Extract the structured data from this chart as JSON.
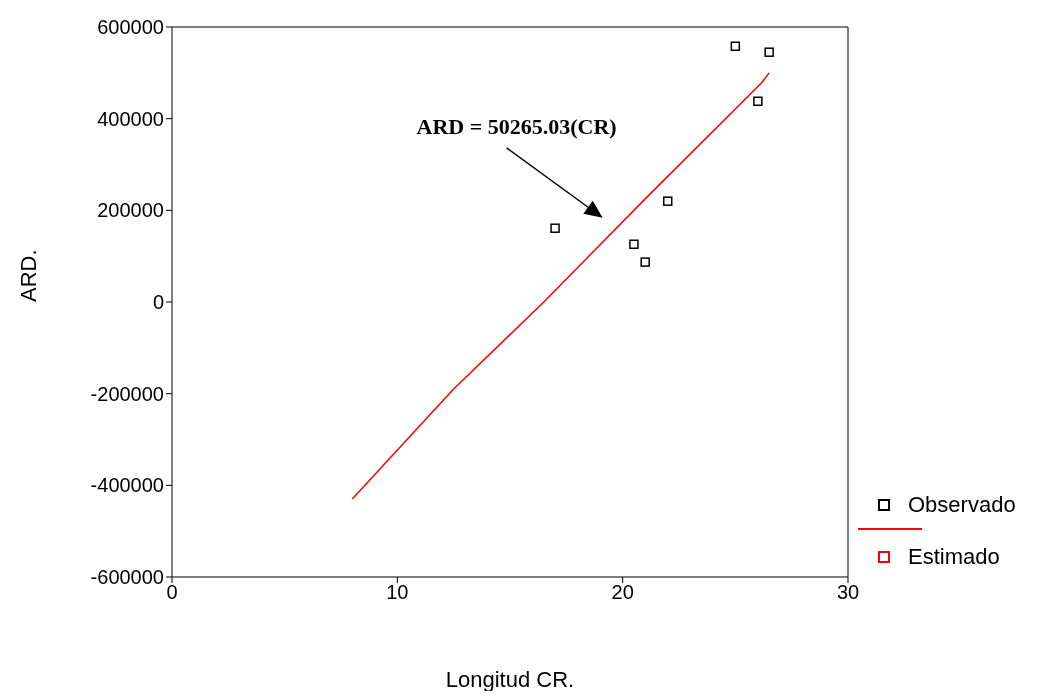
{
  "chart_data": {
    "type": "scatter",
    "xlabel": "Longitud CR.",
    "ylabel": "ARD.",
    "xlim": [
      0,
      30
    ],
    "xticks": [
      0,
      10,
      20,
      30
    ],
    "ylim": [
      -600000,
      600000
    ],
    "yticks": [
      -600000,
      -400000,
      -200000,
      0,
      200000,
      400000,
      600000
    ],
    "legend": "right",
    "series": [
      {
        "name": "Observado",
        "color": "#000000",
        "marker": "square",
        "x": [
          25,
          26.5,
          26,
          22,
          17,
          20.5,
          21
        ],
        "values": [
          558000,
          545000,
          438000,
          220000,
          161000,
          126000,
          87000
        ]
      },
      {
        "name": "Estimado",
        "type": "line",
        "marker": "none",
        "color": "#ff0000",
        "x": [
          8,
          12.5,
          16.5,
          21,
          26.2,
          26.5
        ],
        "values": [
          -430000,
          -190000,
          0,
          225000,
          480000,
          500000
        ]
      }
    ],
    "annotations": [
      "ARD = 50265.03(CR)"
    ]
  }
}
